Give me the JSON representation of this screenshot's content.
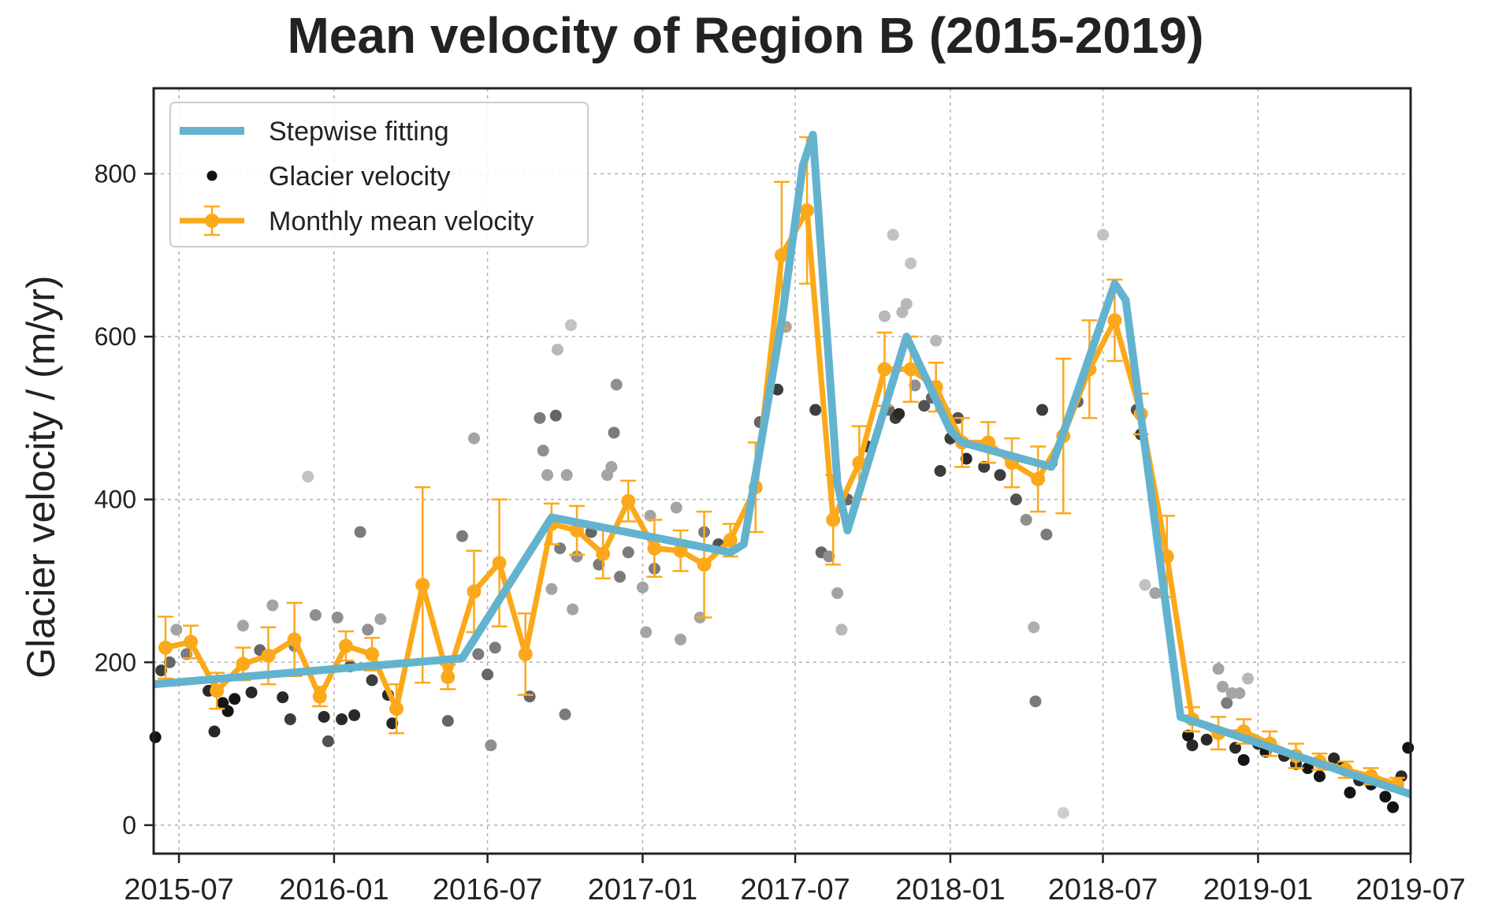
{
  "chart_data": {
    "type": "line",
    "title": "Mean velocity of Region B (2015-2019)",
    "xlabel": "",
    "ylabel": "Glacier velocity / (m/yr)",
    "x_axis_type": "date",
    "xlim": [
      "2015-06-01",
      "2019-07-01"
    ],
    "ylim": [
      -35,
      905
    ],
    "x_ticks": [
      "2015-07",
      "2016-01",
      "2016-07",
      "2017-01",
      "2017-07",
      "2018-01",
      "2018-07",
      "2019-01",
      "2019-07"
    ],
    "y_ticks": [
      0,
      200,
      400,
      600,
      800
    ],
    "grid": true,
    "legend_position": "top-left",
    "colors": {
      "stepwise": "#63b3cf",
      "monthly": "#fba91a",
      "points": "#111111"
    },
    "series": [
      {
        "name": "Stepwise fitting",
        "kind": "line",
        "points": [
          [
            "2015-06-01",
            173
          ],
          [
            "2016-06-01",
            205
          ],
          [
            "2016-09-15",
            378
          ],
          [
            "2017-04-15",
            335
          ],
          [
            "2017-05-01",
            345
          ],
          [
            "2017-06-15",
            620
          ],
          [
            "2017-07-10",
            810
          ],
          [
            "2017-07-22",
            848
          ],
          [
            "2017-08-20",
            420
          ],
          [
            "2017-09-01",
            362
          ],
          [
            "2017-11-10",
            600
          ],
          [
            "2018-01-01",
            485
          ],
          [
            "2018-01-15",
            470
          ],
          [
            "2018-05-01",
            440
          ],
          [
            "2018-06-10",
            560
          ],
          [
            "2018-07-15",
            665
          ],
          [
            "2018-07-28",
            645
          ],
          [
            "2018-10-01",
            133
          ],
          [
            "2019-07-01",
            38
          ]
        ]
      },
      {
        "name": "Monthly mean velocity",
        "kind": "errorbar",
        "points": [
          [
            "2015-06-15",
            218,
            38
          ],
          [
            "2015-07-15",
            225,
            20
          ],
          [
            "2015-08-15",
            165,
            22
          ],
          [
            "2015-09-15",
            198,
            20
          ],
          [
            "2015-10-15",
            208,
            35
          ],
          [
            "2015-11-15",
            228,
            45
          ],
          [
            "2015-12-15",
            158,
            12
          ],
          [
            "2016-01-15",
            220,
            18
          ],
          [
            "2016-02-15",
            210,
            20
          ],
          [
            "2016-03-15",
            143,
            30
          ],
          [
            "2016-04-15",
            295,
            120
          ],
          [
            "2016-05-15",
            182,
            15
          ],
          [
            "2016-06-15",
            287,
            50
          ],
          [
            "2016-07-15",
            322,
            78
          ],
          [
            "2016-08-15",
            210,
            50
          ],
          [
            "2016-09-15",
            370,
            25
          ],
          [
            "2016-10-15",
            362,
            30
          ],
          [
            "2016-11-15",
            333,
            30
          ],
          [
            "2016-12-15",
            398,
            25
          ],
          [
            "2017-01-15",
            340,
            35
          ],
          [
            "2017-02-15",
            337,
            25
          ],
          [
            "2017-03-15",
            320,
            65
          ],
          [
            "2017-04-15",
            350,
            20
          ],
          [
            "2017-05-15",
            415,
            55
          ],
          [
            "2017-06-15",
            700,
            90
          ],
          [
            "2017-07-15",
            755,
            90
          ],
          [
            "2017-08-15",
            375,
            55
          ],
          [
            "2017-09-15",
            445,
            45
          ],
          [
            "2017-10-15",
            560,
            45
          ],
          [
            "2017-11-15",
            560,
            40
          ],
          [
            "2017-12-15",
            538,
            30
          ],
          [
            "2018-01-15",
            470,
            30
          ],
          [
            "2018-02-15",
            470,
            25
          ],
          [
            "2018-03-15",
            445,
            30
          ],
          [
            "2018-04-15",
            425,
            40
          ],
          [
            "2018-05-15",
            478,
            95
          ],
          [
            "2018-06-15",
            560,
            60
          ],
          [
            "2018-07-15",
            620,
            50
          ],
          [
            "2018-08-15",
            505,
            25
          ],
          [
            "2018-09-15",
            330,
            50
          ],
          [
            "2018-10-15",
            130,
            15
          ],
          [
            "2018-11-15",
            113,
            20
          ],
          [
            "2018-12-15",
            115,
            15
          ],
          [
            "2019-01-15",
            100,
            15
          ],
          [
            "2019-02-15",
            85,
            15
          ],
          [
            "2019-03-15",
            78,
            10
          ],
          [
            "2019-04-15",
            68,
            10
          ],
          [
            "2019-05-15",
            60,
            10
          ],
          [
            "2019-06-15",
            50,
            8
          ]
        ]
      },
      {
        "name": "Glacier velocity",
        "kind": "scatter",
        "points": [
          [
            "2015-06-03",
            108,
            1.0
          ],
          [
            "2015-06-10",
            190,
            0.8
          ],
          [
            "2015-06-20",
            200,
            0.6
          ],
          [
            "2015-06-28",
            240,
            0.3
          ],
          [
            "2015-07-10",
            210,
            0.5
          ],
          [
            "2015-08-05",
            165,
            0.9
          ],
          [
            "2015-08-12",
            115,
            0.9
          ],
          [
            "2015-08-22",
            150,
            1.0
          ],
          [
            "2015-08-28",
            140,
            1.0
          ],
          [
            "2015-09-05",
            155,
            1.0
          ],
          [
            "2015-09-15",
            245,
            0.3
          ],
          [
            "2015-09-25",
            163,
            0.9
          ],
          [
            "2015-10-05",
            215,
            0.6
          ],
          [
            "2015-10-20",
            270,
            0.3
          ],
          [
            "2015-11-01",
            157,
            0.9
          ],
          [
            "2015-11-10",
            130,
            0.8
          ],
          [
            "2015-11-15",
            220,
            0.5
          ],
          [
            "2015-12-01",
            428,
            0.15
          ],
          [
            "2015-12-10",
            258,
            0.4
          ],
          [
            "2015-12-20",
            133,
            0.9
          ],
          [
            "2015-12-25",
            103,
            0.7
          ],
          [
            "2016-01-05",
            255,
            0.4
          ],
          [
            "2016-01-10",
            130,
            0.9
          ],
          [
            "2016-01-20",
            195,
            0.7
          ],
          [
            "2016-01-25",
            135,
            0.9
          ],
          [
            "2016-02-01",
            360,
            0.5
          ],
          [
            "2016-02-10",
            240,
            0.4
          ],
          [
            "2016-02-15",
            178,
            0.8
          ],
          [
            "2016-02-25",
            253,
            0.3
          ],
          [
            "2016-03-05",
            160,
            0.9
          ],
          [
            "2016-03-10",
            125,
            0.9
          ],
          [
            "2016-05-15",
            128,
            0.6
          ],
          [
            "2016-06-01",
            355,
            0.5
          ],
          [
            "2016-06-15",
            475,
            0.3
          ],
          [
            "2016-06-20",
            210,
            0.5
          ],
          [
            "2016-07-01",
            185,
            0.6
          ],
          [
            "2016-07-05",
            98,
            0.4
          ],
          [
            "2016-07-10",
            218,
            0.5
          ],
          [
            "2016-08-20",
            158,
            0.6
          ],
          [
            "2016-09-01",
            500,
            0.5
          ],
          [
            "2016-09-05",
            460,
            0.4
          ],
          [
            "2016-09-10",
            430,
            0.3
          ],
          [
            "2016-09-15",
            290,
            0.3
          ],
          [
            "2016-09-20",
            503,
            0.6
          ],
          [
            "2016-09-22",
            584,
            0.2
          ],
          [
            "2016-09-25",
            340,
            0.5
          ],
          [
            "2016-10-01",
            136,
            0.5
          ],
          [
            "2016-10-03",
            430,
            0.3
          ],
          [
            "2016-10-08",
            614,
            0.15
          ],
          [
            "2016-10-10",
            265,
            0.3
          ],
          [
            "2016-10-15",
            330,
            0.4
          ],
          [
            "2016-11-01",
            360,
            0.6
          ],
          [
            "2016-11-10",
            320,
            0.5
          ],
          [
            "2016-11-20",
            430,
            0.3
          ],
          [
            "2016-11-25",
            440,
            0.3
          ],
          [
            "2016-11-28",
            482,
            0.5
          ],
          [
            "2016-12-01",
            541,
            0.4
          ],
          [
            "2016-12-05",
            305,
            0.5
          ],
          [
            "2016-12-15",
            335,
            0.5
          ],
          [
            "2017-01-01",
            292,
            0.3
          ],
          [
            "2017-01-05",
            237,
            0.3
          ],
          [
            "2017-01-10",
            380,
            0.3
          ],
          [
            "2017-01-15",
            315,
            0.5
          ],
          [
            "2017-02-10",
            390,
            0.3
          ],
          [
            "2017-02-15",
            228,
            0.3
          ],
          [
            "2017-03-10",
            255,
            0.3
          ],
          [
            "2017-03-15",
            360,
            0.5
          ],
          [
            "2017-04-01",
            345,
            0.7
          ],
          [
            "2017-05-20",
            495,
            0.6
          ],
          [
            "2017-06-10",
            535,
            0.8
          ],
          [
            "2017-06-20",
            612,
            0.3
          ],
          [
            "2017-07-25",
            510,
            0.8
          ],
          [
            "2017-08-01",
            335,
            0.6
          ],
          [
            "2017-08-10",
            330,
            0.4
          ],
          [
            "2017-08-20",
            285,
            0.3
          ],
          [
            "2017-08-25",
            240,
            0.2
          ],
          [
            "2017-09-01",
            400,
            0.6
          ],
          [
            "2017-09-25",
            465,
            0.8
          ],
          [
            "2017-10-15",
            625,
            0.2
          ],
          [
            "2017-10-20",
            510,
            0.6
          ],
          [
            "2017-10-25",
            725,
            0.15
          ],
          [
            "2017-10-28",
            500,
            0.8
          ],
          [
            "2017-11-01",
            505,
            0.9
          ],
          [
            "2017-11-05",
            630,
            0.2
          ],
          [
            "2017-11-10",
            640,
            0.2
          ],
          [
            "2017-11-15",
            690,
            0.15
          ],
          [
            "2017-11-20",
            540,
            0.4
          ],
          [
            "2017-12-01",
            515,
            0.7
          ],
          [
            "2017-12-10",
            525,
            0.6
          ],
          [
            "2017-12-15",
            595,
            0.2
          ],
          [
            "2017-12-20",
            435,
            0.8
          ],
          [
            "2018-01-01",
            475,
            0.8
          ],
          [
            "2018-01-10",
            500,
            0.7
          ],
          [
            "2018-01-20",
            450,
            0.9
          ],
          [
            "2018-02-10",
            440,
            0.8
          ],
          [
            "2018-03-01",
            430,
            0.8
          ],
          [
            "2018-03-20",
            400,
            0.7
          ],
          [
            "2018-04-01",
            375,
            0.4
          ],
          [
            "2018-04-10",
            243,
            0.25
          ],
          [
            "2018-04-12",
            152,
            0.5
          ],
          [
            "2018-04-20",
            510,
            0.8
          ],
          [
            "2018-04-25",
            357,
            0.5
          ],
          [
            "2018-05-01",
            445,
            0.7
          ],
          [
            "2018-05-15",
            15,
            0.1
          ],
          [
            "2018-06-01",
            520,
            0.6
          ],
          [
            "2018-07-01",
            725,
            0.15
          ],
          [
            "2018-08-10",
            510,
            0.7
          ],
          [
            "2018-08-15",
            480,
            0.8
          ],
          [
            "2018-08-20",
            295,
            0.15
          ],
          [
            "2018-09-01",
            285,
            0.3
          ],
          [
            "2018-10-10",
            110,
            1.0
          ],
          [
            "2018-10-15",
            98,
            0.9
          ],
          [
            "2018-11-01",
            105,
            0.9
          ],
          [
            "2018-11-15",
            192,
            0.3
          ],
          [
            "2018-11-20",
            170,
            0.3
          ],
          [
            "2018-11-25",
            150,
            0.5
          ],
          [
            "2018-12-01",
            162,
            0.3
          ],
          [
            "2018-12-05",
            95,
            0.9
          ],
          [
            "2018-12-10",
            162,
            0.3
          ],
          [
            "2018-12-15",
            80,
            1.0
          ],
          [
            "2018-12-20",
            180,
            0.2
          ],
          [
            "2019-01-01",
            100,
            0.9
          ],
          [
            "2019-01-10",
            90,
            1.0
          ],
          [
            "2019-02-01",
            85,
            0.9
          ],
          [
            "2019-02-15",
            75,
            0.9
          ],
          [
            "2019-03-01",
            70,
            1.0
          ],
          [
            "2019-03-15",
            60,
            1.0
          ],
          [
            "2019-04-01",
            82,
            0.9
          ],
          [
            "2019-04-10",
            70,
            1.0
          ],
          [
            "2019-04-20",
            40,
            1.0
          ],
          [
            "2019-05-01",
            55,
            0.9
          ],
          [
            "2019-05-15",
            50,
            1.0
          ],
          [
            "2019-06-01",
            35,
            1.0
          ],
          [
            "2019-06-10",
            22,
            1.0
          ],
          [
            "2019-06-20",
            60,
            0.9
          ],
          [
            "2019-06-28",
            95,
            1.0
          ]
        ]
      }
    ]
  }
}
